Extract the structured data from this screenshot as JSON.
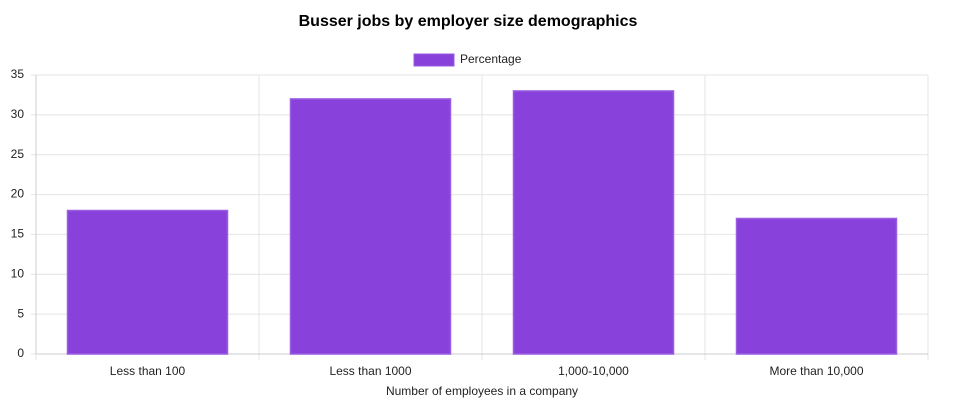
{
  "chart_data": {
    "type": "bar",
    "title": "Busser jobs by employer size demographics",
    "x_label": "Number of employees in a company",
    "categories": [
      "Less than 100",
      "Less than 1000",
      "1,000-10,000",
      "More than 10,000"
    ],
    "series": [
      {
        "name": "Percentage",
        "color": "#8842db",
        "values": [
          18,
          32,
          33,
          17
        ]
      }
    ],
    "ylim": [
      0,
      35
    ],
    "yticks": [
      0,
      5,
      10,
      15,
      20,
      25,
      30,
      35
    ],
    "grid": true,
    "legend": "top"
  }
}
